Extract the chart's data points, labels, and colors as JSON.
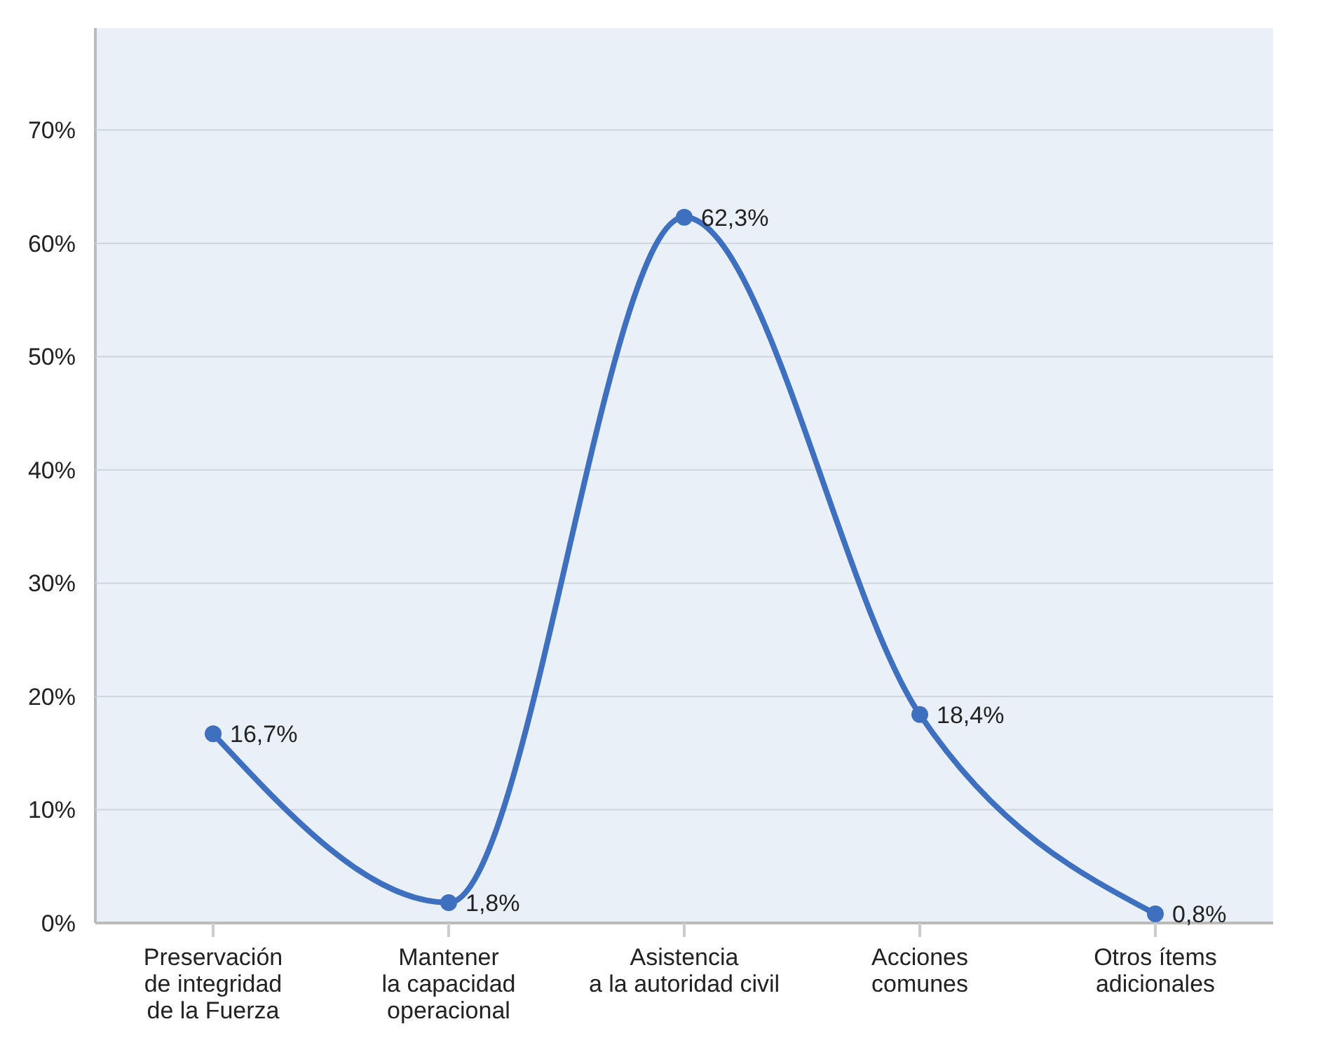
{
  "chart_data": {
    "type": "line",
    "categories": [
      "Preservación\nde integridad\nde la Fuerza",
      "Mantener\nla capacidad\noperacional",
      "Asistencia\na la autoridad civil",
      "Acciones\ncomunes",
      "Otros ítems\nadicionales"
    ],
    "series": [
      {
        "color": "#3f70bf",
        "values": [
          16.7,
          1.8,
          62.3,
          18.4,
          0.8
        ],
        "value_labels": [
          "16,7%",
          "1,8%",
          "62,3%",
          "18,4%",
          "0,8%"
        ]
      }
    ],
    "ylim": [
      0,
      79
    ],
    "yticks": [
      {
        "value": 0,
        "label": "0%"
      },
      {
        "value": 10,
        "label": "10%"
      },
      {
        "value": 20,
        "label": "20%"
      },
      {
        "value": 30,
        "label": "30%"
      },
      {
        "value": 40,
        "label": "40%"
      },
      {
        "value": 50,
        "label": "50%"
      },
      {
        "value": 60,
        "label": "60%"
      },
      {
        "value": 70,
        "label": "70%"
      }
    ],
    "grid": "y",
    "marker": "circle",
    "line_style": "solid"
  }
}
